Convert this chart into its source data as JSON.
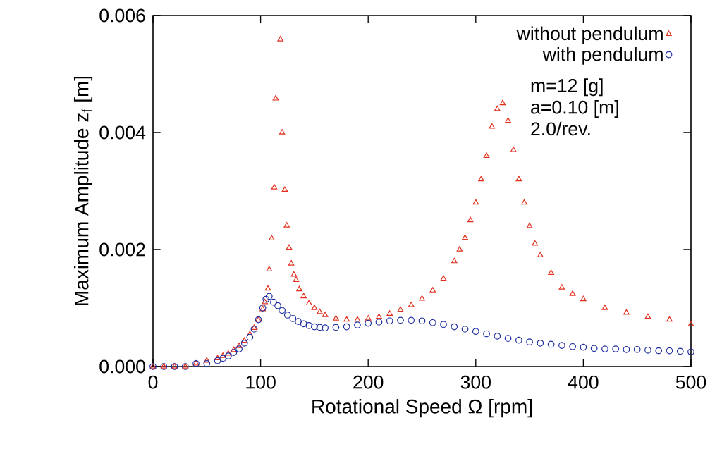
{
  "chart_data": {
    "type": "scatter",
    "xlabel": "Rotational Speed Ω [rpm]",
    "ylabel": "Maximum Amplitude z$_{f}$ [m]",
    "xlim": [
      0,
      500
    ],
    "ylim": [
      0,
      0.006
    ],
    "xticks": [
      0,
      100,
      200,
      300,
      400,
      500
    ],
    "yticks": [
      {
        "value": 0,
        "label": "0.000"
      },
      {
        "value": 0.002,
        "label": "0.002"
      },
      {
        "value": 0.004,
        "label": "0.004"
      },
      {
        "value": 0.006,
        "label": "0.006"
      }
    ],
    "legend": "top right",
    "grid": false,
    "annotations": [
      "m=12 [g]",
      "a=0.10 [m]",
      "2.0/rev."
    ],
    "series": [
      {
        "name": "without pendulum",
        "color": "#e3301e",
        "marker": "triangle",
        "x": [
          0,
          10,
          20,
          30,
          40,
          50,
          60,
          65,
          70,
          75,
          80,
          85,
          90,
          94,
          98,
          102,
          104,
          106.8,
          108,
          110.3,
          112.7,
          114,
          118.4,
          120,
          122.5,
          124.3,
          126.5,
          128.5,
          131,
          133,
          136,
          140,
          145,
          150,
          155,
          160,
          170,
          180,
          190,
          200,
          210,
          220,
          230,
          240,
          250,
          260,
          270,
          280,
          285,
          290,
          295,
          300,
          305,
          310,
          315,
          320,
          325,
          330,
          335,
          340,
          345,
          350,
          355,
          360,
          370,
          380,
          390,
          400,
          420,
          440,
          460,
          480,
          500
        ],
        "values": [
          0,
          0,
          0,
          0,
          5e-05,
          0.0001,
          0.00014,
          0.00018,
          0.00022,
          0.00028,
          0.00035,
          0.00044,
          0.00055,
          0.00066,
          0.0008,
          0.00098,
          0.0011,
          0.00133,
          0.00166,
          0.00219,
          0.00306,
          0.00458,
          0.00559,
          0.004,
          0.00302,
          0.00241,
          0.00203,
          0.00176,
          0.00157,
          0.00148,
          0.00132,
          0.0012,
          0.00108,
          0.001,
          0.00093,
          0.00088,
          0.00082,
          0.0008,
          0.0008,
          0.00082,
          0.00085,
          0.0009,
          0.00097,
          0.00105,
          0.00116,
          0.0013,
          0.0015,
          0.0018,
          0.002,
          0.0022,
          0.0025,
          0.0028,
          0.0032,
          0.0036,
          0.0041,
          0.0044,
          0.0045,
          0.0042,
          0.0037,
          0.0032,
          0.0028,
          0.0024,
          0.0021,
          0.0019,
          0.0016,
          0.00135,
          0.00124,
          0.00115,
          0.001,
          0.00092,
          0.00085,
          0.0008,
          0.00072
        ]
      },
      {
        "name": "with pendulum",
        "color": "#1e2ea0",
        "marker": "circle",
        "x": [
          0,
          10,
          20,
          30,
          40,
          50,
          60,
          65,
          70,
          75,
          80,
          85,
          90,
          94,
          98,
          102,
          105,
          108,
          112,
          116,
          120,
          125,
          130,
          135,
          140,
          145,
          150,
          155,
          160,
          170,
          180,
          190,
          200,
          210,
          220,
          230,
          240,
          250,
          260,
          270,
          280,
          290,
          300,
          310,
          320,
          330,
          340,
          350,
          360,
          370,
          380,
          390,
          400,
          410,
          420,
          430,
          440,
          450,
          460,
          470,
          480,
          490,
          500
        ],
        "values": [
          0,
          0,
          0,
          0,
          5e-05,
          5e-05,
          0.0001,
          0.00014,
          0.00018,
          0.00024,
          0.0003,
          0.0004,
          0.0005,
          0.00064,
          0.0008,
          0.001,
          0.00115,
          0.0012,
          0.0011,
          0.00104,
          0.00096,
          0.00088,
          0.00082,
          0.00077,
          0.00073,
          0.0007,
          0.00068,
          0.00067,
          0.00066,
          0.00067,
          0.00068,
          0.00071,
          0.00074,
          0.00076,
          0.00078,
          0.00079,
          0.00079,
          0.00078,
          0.00075,
          0.00072,
          0.00068,
          0.00064,
          0.0006,
          0.00056,
          0.00052,
          0.00048,
          0.00045,
          0.00042,
          0.0004,
          0.00038,
          0.00036,
          0.00034,
          0.00033,
          0.00031,
          0.0003,
          0.0003,
          0.00029,
          0.00029,
          0.00028,
          0.00027,
          0.00027,
          0.00026,
          0.00025
        ]
      }
    ]
  }
}
